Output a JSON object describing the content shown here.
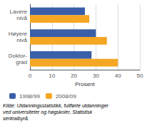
{
  "chart_data": {
    "type": "bar",
    "orientation": "horizontal",
    "categories": [
      "Lavere\nnivå",
      "Høyere\nnivå",
      "Doktor-\ngrad"
    ],
    "series": [
      {
        "name": "1998/99",
        "color": "#3A5FA8",
        "values": [
          25,
          30,
          28
        ]
      },
      {
        "name": "2008/09",
        "color": "#F5A623",
        "values": [
          27,
          35,
          40
        ]
      }
    ],
    "xlabel": "Prosent",
    "xlim": [
      0,
      50
    ],
    "xticks": [
      0,
      10,
      20,
      30,
      40,
      50
    ],
    "grid": true,
    "legend": "bottom",
    "annotations": [
      "Kilde: Utdanningsstatistikk, fullførte utdanninger\nved universiteter og høgskoler, Statistisk\nsentralbyrå."
    ]
  }
}
